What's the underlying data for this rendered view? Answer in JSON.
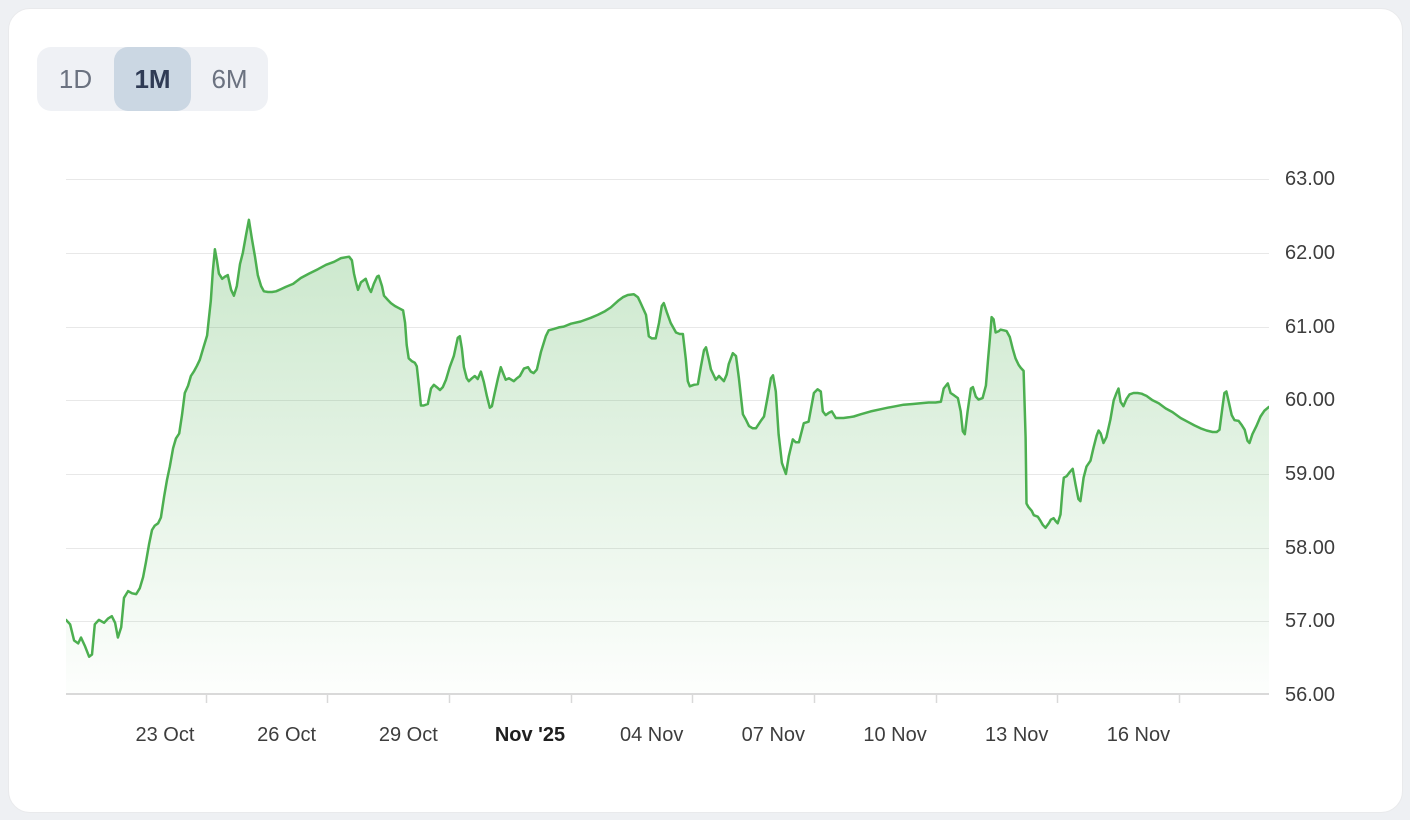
{
  "range_selector": {
    "options": [
      {
        "label": "1D",
        "selected": false
      },
      {
        "label": "1M",
        "selected": true
      },
      {
        "label": "6M",
        "selected": false
      }
    ],
    "selected_bg_color": "#cbd7e3",
    "selected_text_color": "#2f3b55",
    "text_color": "#6b7280"
  },
  "chart_data": {
    "type": "area",
    "title": "",
    "legend": "none",
    "grid": "horizontal-only",
    "series_color": "#4caf50",
    "fill_top_color": "rgba(76,175,80,0.30)",
    "fill_bottom_color": "rgba(76,175,80,0.01)",
    "grid_color": "#e8e8e8",
    "axis_line_color": "#d9d9d9",
    "label_color": "#3d3d3d",
    "x_axis": {
      "unit": "days",
      "range_days": 29.66,
      "tick_mark_offset_days": 1,
      "ticks": [
        {
          "label": "23 Oct",
          "d": 2.44,
          "bold": false
        },
        {
          "label": "26 Oct",
          "d": 5.44,
          "bold": false
        },
        {
          "label": "29 Oct",
          "d": 8.44,
          "bold": false
        },
        {
          "label": "Nov '25",
          "d": 11.44,
          "bold": true
        },
        {
          "label": "04 Nov",
          "d": 14.44,
          "bold": false
        },
        {
          "label": "07 Nov",
          "d": 17.44,
          "bold": false
        },
        {
          "label": "10 Nov",
          "d": 20.44,
          "bold": false
        },
        {
          "label": "13 Nov",
          "d": 23.44,
          "bold": false
        },
        {
          "label": "16 Nov",
          "d": 26.44,
          "bold": false
        }
      ]
    },
    "y_axis": {
      "min": 56.0,
      "max": 63.52,
      "ticks": [
        {
          "label": "63.00",
          "value": 63
        },
        {
          "label": "62.00",
          "value": 62
        },
        {
          "label": "61.00",
          "value": 61
        },
        {
          "label": "60.00",
          "value": 60
        },
        {
          "label": "59.00",
          "value": 59
        },
        {
          "label": "58.00",
          "value": 58
        },
        {
          "label": "57.00",
          "value": 57
        },
        {
          "label": "56.00",
          "value": 56
        }
      ]
    },
    "points": [
      [
        0,
        57.02
      ],
      [
        0.1,
        56.96
      ],
      [
        0.2,
        56.74
      ],
      [
        0.3,
        56.7
      ],
      [
        0.37,
        56.78
      ],
      [
        0.47,
        56.66
      ],
      [
        0.57,
        56.52
      ],
      [
        0.64,
        56.55
      ],
      [
        0.71,
        56.96
      ],
      [
        0.81,
        57.02
      ],
      [
        0.94,
        56.98
      ],
      [
        1.04,
        57.04
      ],
      [
        1.13,
        57.07
      ],
      [
        1.21,
        56.98
      ],
      [
        1.28,
        56.78
      ],
      [
        1.36,
        56.92
      ],
      [
        1.43,
        57.32
      ],
      [
        1.53,
        57.41
      ],
      [
        1.63,
        57.38
      ],
      [
        1.73,
        57.37
      ],
      [
        1.82,
        57.45
      ],
      [
        1.9,
        57.6
      ],
      [
        1.97,
        57.8
      ],
      [
        2.05,
        58.05
      ],
      [
        2.12,
        58.24
      ],
      [
        2.19,
        58.3
      ],
      [
        2.27,
        58.33
      ],
      [
        2.34,
        58.41
      ],
      [
        2.42,
        58.7
      ],
      [
        2.49,
        58.92
      ],
      [
        2.56,
        59.1
      ],
      [
        2.64,
        59.35
      ],
      [
        2.71,
        59.48
      ],
      [
        2.79,
        59.55
      ],
      [
        2.86,
        59.8
      ],
      [
        2.93,
        60.1
      ],
      [
        3.01,
        60.2
      ],
      [
        3.08,
        60.33
      ],
      [
        3.16,
        60.4
      ],
      [
        3.23,
        60.47
      ],
      [
        3.3,
        60.55
      ],
      [
        3.38,
        60.7
      ],
      [
        3.48,
        60.88
      ],
      [
        3.52,
        61.1
      ],
      [
        3.57,
        61.35
      ],
      [
        3.62,
        61.75
      ],
      [
        3.67,
        62.05
      ],
      [
        3.72,
        61.9
      ],
      [
        3.77,
        61.72
      ],
      [
        3.85,
        61.65
      ],
      [
        3.92,
        61.68
      ],
      [
        3.99,
        61.7
      ],
      [
        4.07,
        61.5
      ],
      [
        4.14,
        61.42
      ],
      [
        4.21,
        61.55
      ],
      [
        4.29,
        61.85
      ],
      [
        4.36,
        62.0
      ],
      [
        4.44,
        62.25
      ],
      [
        4.51,
        62.45
      ],
      [
        4.58,
        62.2
      ],
      [
        4.66,
        61.95
      ],
      [
        4.73,
        61.7
      ],
      [
        4.81,
        61.55
      ],
      [
        4.88,
        61.48
      ],
      [
        4.98,
        61.47
      ],
      [
        5.08,
        61.47
      ],
      [
        5.18,
        61.48
      ],
      [
        5.3,
        61.51
      ],
      [
        5.42,
        61.54
      ],
      [
        5.6,
        61.58
      ],
      [
        5.79,
        61.66
      ],
      [
        5.99,
        61.72
      ],
      [
        6.21,
        61.78
      ],
      [
        6.41,
        61.84
      ],
      [
        6.61,
        61.88
      ],
      [
        6.78,
        61.93
      ],
      [
        6.98,
        61.95
      ],
      [
        7.05,
        61.9
      ],
      [
        7.1,
        61.72
      ],
      [
        7.15,
        61.6
      ],
      [
        7.2,
        61.5
      ],
      [
        7.27,
        61.6
      ],
      [
        7.39,
        61.65
      ],
      [
        7.47,
        61.52
      ],
      [
        7.52,
        61.47
      ],
      [
        7.59,
        61.58
      ],
      [
        7.67,
        61.68
      ],
      [
        7.71,
        61.69
      ],
      [
        7.79,
        61.55
      ],
      [
        7.84,
        61.42
      ],
      [
        7.94,
        61.36
      ],
      [
        8.01,
        61.32
      ],
      [
        8.11,
        61.28
      ],
      [
        8.21,
        61.25
      ],
      [
        8.31,
        61.22
      ],
      [
        8.36,
        61.05
      ],
      [
        8.4,
        60.75
      ],
      [
        8.45,
        60.57
      ],
      [
        8.53,
        60.53
      ],
      [
        8.6,
        60.51
      ],
      [
        8.65,
        60.46
      ],
      [
        8.7,
        60.2
      ],
      [
        8.75,
        59.93
      ],
      [
        8.82,
        59.93
      ],
      [
        8.92,
        59.95
      ],
      [
        9.0,
        60.16
      ],
      [
        9.07,
        60.21
      ],
      [
        9.14,
        60.18
      ],
      [
        9.22,
        60.14
      ],
      [
        9.29,
        60.18
      ],
      [
        9.37,
        60.28
      ],
      [
        9.46,
        60.45
      ],
      [
        9.56,
        60.6
      ],
      [
        9.66,
        60.85
      ],
      [
        9.71,
        60.87
      ],
      [
        9.76,
        60.7
      ],
      [
        9.81,
        60.45
      ],
      [
        9.88,
        60.3
      ],
      [
        9.93,
        60.26
      ],
      [
        10.01,
        60.3
      ],
      [
        10.08,
        60.33
      ],
      [
        10.15,
        60.29
      ],
      [
        10.23,
        60.39
      ],
      [
        10.3,
        60.25
      ],
      [
        10.38,
        60.05
      ],
      [
        10.45,
        59.9
      ],
      [
        10.5,
        59.92
      ],
      [
        10.57,
        60.1
      ],
      [
        10.65,
        60.3
      ],
      [
        10.72,
        60.45
      ],
      [
        10.79,
        60.35
      ],
      [
        10.84,
        60.28
      ],
      [
        10.92,
        60.3
      ],
      [
        11.04,
        60.26
      ],
      [
        11.12,
        60.3
      ],
      [
        11.19,
        60.33
      ],
      [
        11.29,
        60.43
      ],
      [
        11.39,
        60.45
      ],
      [
        11.46,
        60.39
      ],
      [
        11.53,
        60.37
      ],
      [
        11.61,
        60.42
      ],
      [
        11.71,
        60.66
      ],
      [
        11.83,
        60.87
      ],
      [
        11.9,
        60.95
      ],
      [
        12.03,
        60.97
      ],
      [
        12.15,
        60.99
      ],
      [
        12.27,
        61.0
      ],
      [
        12.45,
        61.04
      ],
      [
        12.69,
        61.07
      ],
      [
        12.94,
        61.12
      ],
      [
        13.11,
        61.16
      ],
      [
        13.29,
        61.21
      ],
      [
        13.43,
        61.26
      ],
      [
        13.61,
        61.35
      ],
      [
        13.73,
        61.4
      ],
      [
        13.85,
        61.43
      ],
      [
        14.0,
        61.44
      ],
      [
        14.1,
        61.4
      ],
      [
        14.17,
        61.32
      ],
      [
        14.3,
        61.16
      ],
      [
        14.37,
        60.87
      ],
      [
        14.44,
        60.84
      ],
      [
        14.54,
        60.84
      ],
      [
        14.62,
        61.05
      ],
      [
        14.69,
        61.28
      ],
      [
        14.74,
        61.32
      ],
      [
        14.81,
        61.2
      ],
      [
        14.91,
        61.05
      ],
      [
        15.04,
        60.92
      ],
      [
        15.13,
        60.9
      ],
      [
        15.21,
        60.9
      ],
      [
        15.28,
        60.56
      ],
      [
        15.33,
        60.26
      ],
      [
        15.38,
        60.19
      ],
      [
        15.48,
        60.21
      ],
      [
        15.58,
        60.22
      ],
      [
        15.65,
        60.45
      ],
      [
        15.73,
        60.68
      ],
      [
        15.78,
        60.72
      ],
      [
        15.85,
        60.55
      ],
      [
        15.9,
        60.42
      ],
      [
        16.02,
        60.28
      ],
      [
        16.1,
        60.33
      ],
      [
        16.22,
        60.26
      ],
      [
        16.29,
        60.35
      ],
      [
        16.34,
        60.49
      ],
      [
        16.44,
        60.64
      ],
      [
        16.52,
        60.6
      ],
      [
        16.59,
        60.3
      ],
      [
        16.69,
        59.81
      ],
      [
        16.76,
        59.74
      ],
      [
        16.84,
        59.65
      ],
      [
        16.93,
        59.62
      ],
      [
        17.01,
        59.62
      ],
      [
        17.13,
        59.72
      ],
      [
        17.21,
        59.78
      ],
      [
        17.3,
        60.05
      ],
      [
        17.38,
        60.3
      ],
      [
        17.43,
        60.34
      ],
      [
        17.5,
        60.12
      ],
      [
        17.57,
        59.54
      ],
      [
        17.65,
        59.15
      ],
      [
        17.75,
        59.0
      ],
      [
        17.82,
        59.24
      ],
      [
        17.92,
        59.47
      ],
      [
        17.99,
        59.43
      ],
      [
        18.07,
        59.43
      ],
      [
        18.19,
        59.69
      ],
      [
        18.31,
        59.71
      ],
      [
        18.44,
        60.1
      ],
      [
        18.53,
        60.15
      ],
      [
        18.61,
        60.12
      ],
      [
        18.66,
        59.85
      ],
      [
        18.73,
        59.8
      ],
      [
        18.81,
        59.83
      ],
      [
        18.88,
        59.85
      ],
      [
        18.98,
        59.76
      ],
      [
        19.05,
        59.76
      ],
      [
        19.17,
        59.76
      ],
      [
        19.3,
        59.77
      ],
      [
        19.42,
        59.78
      ],
      [
        19.59,
        59.81
      ],
      [
        19.84,
        59.85
      ],
      [
        20.09,
        59.88
      ],
      [
        20.26,
        59.9
      ],
      [
        20.46,
        59.92
      ],
      [
        20.65,
        59.94
      ],
      [
        20.88,
        59.95
      ],
      [
        21.07,
        59.96
      ],
      [
        21.27,
        59.97
      ],
      [
        21.44,
        59.97
      ],
      [
        21.57,
        59.98
      ],
      [
        21.64,
        60.16
      ],
      [
        21.74,
        60.23
      ],
      [
        21.81,
        60.1
      ],
      [
        21.89,
        60.07
      ],
      [
        21.99,
        60.03
      ],
      [
        22.06,
        59.85
      ],
      [
        22.11,
        59.58
      ],
      [
        22.16,
        59.54
      ],
      [
        22.23,
        59.85
      ],
      [
        22.31,
        60.16
      ],
      [
        22.36,
        60.18
      ],
      [
        22.43,
        60.05
      ],
      [
        22.5,
        60.01
      ],
      [
        22.6,
        60.03
      ],
      [
        22.68,
        60.2
      ],
      [
        22.73,
        60.53
      ],
      [
        22.78,
        60.84
      ],
      [
        22.82,
        61.13
      ],
      [
        22.87,
        61.1
      ],
      [
        22.92,
        60.92
      ],
      [
        23.0,
        60.94
      ],
      [
        23.04,
        60.96
      ],
      [
        23.12,
        60.95
      ],
      [
        23.19,
        60.94
      ],
      [
        23.27,
        60.86
      ],
      [
        23.34,
        60.7
      ],
      [
        23.41,
        60.57
      ],
      [
        23.49,
        60.48
      ],
      [
        23.54,
        60.44
      ],
      [
        23.61,
        60.4
      ],
      [
        23.66,
        59.5
      ],
      [
        23.68,
        58.6
      ],
      [
        23.73,
        58.55
      ],
      [
        23.81,
        58.5
      ],
      [
        23.86,
        58.44
      ],
      [
        23.96,
        58.42
      ],
      [
        24.03,
        58.36
      ],
      [
        24.08,
        58.31
      ],
      [
        24.15,
        58.27
      ],
      [
        24.23,
        58.33
      ],
      [
        24.28,
        58.38
      ],
      [
        24.35,
        58.4
      ],
      [
        24.4,
        58.36
      ],
      [
        24.45,
        58.33
      ],
      [
        24.52,
        58.45
      ],
      [
        24.57,
        58.8
      ],
      [
        24.6,
        58.95
      ],
      [
        24.67,
        58.97
      ],
      [
        24.74,
        59.02
      ],
      [
        24.82,
        59.07
      ],
      [
        24.89,
        58.86
      ],
      [
        24.96,
        58.66
      ],
      [
        25.01,
        58.63
      ],
      [
        25.09,
        58.95
      ],
      [
        25.16,
        59.1
      ],
      [
        25.26,
        59.18
      ],
      [
        25.33,
        59.35
      ],
      [
        25.41,
        59.52
      ],
      [
        25.46,
        59.59
      ],
      [
        25.51,
        59.55
      ],
      [
        25.58,
        59.42
      ],
      [
        25.65,
        59.5
      ],
      [
        25.75,
        59.74
      ],
      [
        25.83,
        60.0
      ],
      [
        25.9,
        60.1
      ],
      [
        25.95,
        60.16
      ],
      [
        26.0,
        59.98
      ],
      [
        26.07,
        59.92
      ],
      [
        26.15,
        60.02
      ],
      [
        26.22,
        60.08
      ],
      [
        26.32,
        60.1
      ],
      [
        26.42,
        60.1
      ],
      [
        26.52,
        60.09
      ],
      [
        26.64,
        60.06
      ],
      [
        26.79,
        60.0
      ],
      [
        26.94,
        59.96
      ],
      [
        27.11,
        59.89
      ],
      [
        27.28,
        59.84
      ],
      [
        27.48,
        59.76
      ],
      [
        27.65,
        59.71
      ],
      [
        27.82,
        59.66
      ],
      [
        27.97,
        59.62
      ],
      [
        28.12,
        59.59
      ],
      [
        28.27,
        59.57
      ],
      [
        28.37,
        59.57
      ],
      [
        28.44,
        59.6
      ],
      [
        28.51,
        59.9
      ],
      [
        28.56,
        60.1
      ],
      [
        28.61,
        60.12
      ],
      [
        28.66,
        60.0
      ],
      [
        28.74,
        59.8
      ],
      [
        28.81,
        59.73
      ],
      [
        28.91,
        59.72
      ],
      [
        28.98,
        59.67
      ],
      [
        29.06,
        59.6
      ],
      [
        29.13,
        59.45
      ],
      [
        29.18,
        59.42
      ],
      [
        29.25,
        59.54
      ],
      [
        29.35,
        59.65
      ],
      [
        29.45,
        59.78
      ],
      [
        29.55,
        59.86
      ],
      [
        29.66,
        59.91
      ]
    ]
  }
}
